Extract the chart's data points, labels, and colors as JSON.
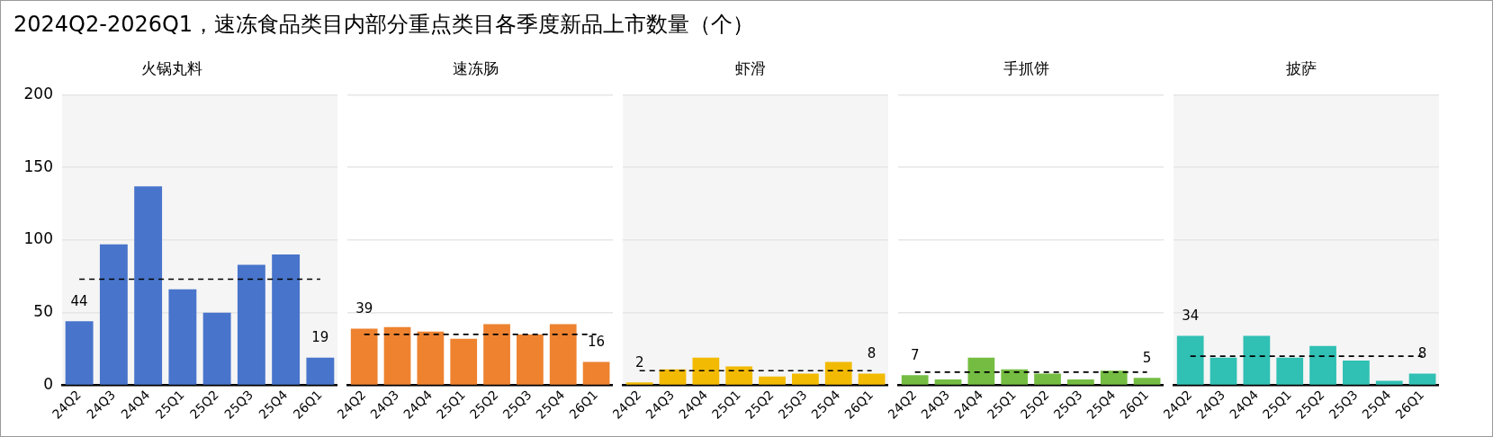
{
  "chart_data": [
    {
      "type": "bar",
      "title": "2024Q2-2026Q1，速冻食品类目内部分重点类目各季度新品上市数量（个）",
      "subtitle": "火锅丸料",
      "categories": [
        "24Q2",
        "24Q3",
        "24Q4",
        "25Q1",
        "25Q2",
        "25Q3",
        "25Q4",
        "26Q1"
      ],
      "values": [
        44,
        97,
        137,
        66,
        50,
        83,
        90,
        19
      ],
      "color": "#4874cb",
      "value_labels": [
        "44",
        null,
        null,
        null,
        null,
        null,
        null,
        "19"
      ],
      "ylim": [
        0,
        200
      ],
      "yticks": [
        0,
        50,
        100,
        150,
        200
      ],
      "grid": "y",
      "ref_lines": [
        {
          "axis": "y",
          "value": 73,
          "color": "#000000",
          "line_style": "dashed"
        }
      ]
    },
    {
      "type": "bar",
      "subtitle": "速冻肠",
      "categories": [
        "24Q2",
        "24Q3",
        "24Q4",
        "25Q1",
        "25Q2",
        "25Q3",
        "25Q4",
        "26Q1"
      ],
      "values": [
        39,
        40,
        37,
        32,
        42,
        35,
        42,
        16
      ],
      "color": "#ee822f",
      "value_labels": [
        "39",
        null,
        null,
        null,
        null,
        null,
        null,
        "16"
      ],
      "ylim": [
        0,
        200
      ],
      "yticks": [
        0,
        50,
        100,
        150,
        200
      ],
      "grid": "y",
      "tick_labels": "x",
      "ref_lines": [
        {
          "axis": "y",
          "value": 35,
          "color": "#000000",
          "line_style": "dashed"
        }
      ]
    },
    {
      "type": "bar",
      "subtitle": "虾滑",
      "categories": [
        "24Q2",
        "24Q3",
        "24Q4",
        "25Q1",
        "25Q2",
        "25Q3",
        "25Q4",
        "26Q1"
      ],
      "values": [
        2,
        11,
        19,
        13,
        6,
        8,
        16,
        8
      ],
      "color": "#f2ba02",
      "value_labels": [
        "2",
        null,
        null,
        null,
        null,
        null,
        null,
        "8"
      ],
      "ylim": [
        0,
        200
      ],
      "yticks": [
        0,
        50,
        100,
        150,
        200
      ],
      "grid": "y",
      "tick_labels": "x",
      "ref_lines": [
        {
          "axis": "y",
          "value": 10,
          "color": "#000000",
          "line_style": "dashed"
        }
      ]
    },
    {
      "type": "bar",
      "subtitle": "手抓饼",
      "categories": [
        "24Q2",
        "24Q3",
        "24Q4",
        "25Q1",
        "25Q2",
        "25Q3",
        "25Q4",
        "26Q1"
      ],
      "values": [
        7,
        4,
        19,
        11,
        8,
        4,
        10,
        5
      ],
      "color": "#75bd42",
      "value_labels": [
        "7",
        null,
        null,
        null,
        null,
        null,
        null,
        "5"
      ],
      "ylim": [
        0,
        200
      ],
      "yticks": [
        0,
        50,
        100,
        150,
        200
      ],
      "grid": "y",
      "tick_labels": "x",
      "ref_lines": [
        {
          "axis": "y",
          "value": 9,
          "color": "#000000",
          "line_style": "dashed"
        }
      ]
    },
    {
      "type": "bar",
      "subtitle": "披萨",
      "categories": [
        "24Q2",
        "24Q3",
        "24Q4",
        "25Q1",
        "25Q2",
        "25Q3",
        "25Q4",
        "26Q1"
      ],
      "values": [
        34,
        19,
        34,
        19,
        27,
        17,
        3,
        8
      ],
      "color": "#30c0b4",
      "value_labels": [
        "34",
        null,
        null,
        null,
        null,
        null,
        null,
        "8"
      ],
      "ylim": [
        0,
        200
      ],
      "yticks": [
        0,
        50,
        100,
        150,
        200
      ],
      "grid": "y",
      "tick_labels": "x",
      "ref_lines": [
        {
          "axis": "y",
          "value": 20,
          "color": "#000000",
          "line_style": "dashed"
        }
      ]
    }
  ]
}
